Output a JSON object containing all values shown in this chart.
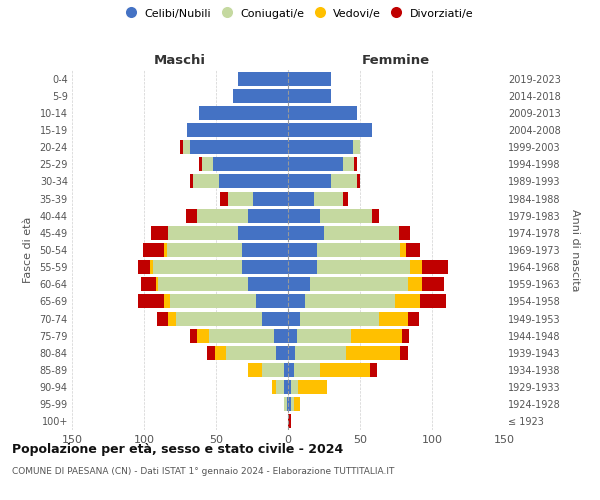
{
  "age_groups": [
    "100+",
    "95-99",
    "90-94",
    "85-89",
    "80-84",
    "75-79",
    "70-74",
    "65-69",
    "60-64",
    "55-59",
    "50-54",
    "45-49",
    "40-44",
    "35-39",
    "30-34",
    "25-29",
    "20-24",
    "15-19",
    "10-14",
    "5-9",
    "0-4"
  ],
  "birth_years": [
    "≤ 1923",
    "1924-1928",
    "1929-1933",
    "1934-1938",
    "1939-1943",
    "1944-1948",
    "1949-1953",
    "1954-1958",
    "1959-1963",
    "1964-1968",
    "1969-1973",
    "1974-1978",
    "1979-1983",
    "1984-1988",
    "1989-1993",
    "1994-1998",
    "1999-2003",
    "2004-2008",
    "2009-2013",
    "2014-2018",
    "2019-2023"
  ],
  "males": {
    "celibi": [
      0,
      1,
      3,
      3,
      8,
      10,
      18,
      22,
      28,
      32,
      32,
      35,
      28,
      24,
      48,
      52,
      68,
      70,
      62,
      38,
      35
    ],
    "coniugati": [
      0,
      2,
      5,
      15,
      35,
      45,
      60,
      60,
      62,
      62,
      52,
      48,
      35,
      18,
      18,
      8,
      5,
      0,
      0,
      0,
      0
    ],
    "vedovi": [
      0,
      0,
      3,
      10,
      8,
      8,
      5,
      4,
      2,
      2,
      2,
      0,
      0,
      0,
      0,
      0,
      0,
      0,
      0,
      0,
      0
    ],
    "divorziati": [
      0,
      0,
      0,
      0,
      5,
      5,
      8,
      18,
      10,
      8,
      15,
      12,
      8,
      5,
      2,
      2,
      2,
      0,
      0,
      0,
      0
    ]
  },
  "females": {
    "nubili": [
      0,
      2,
      2,
      4,
      5,
      6,
      8,
      12,
      15,
      20,
      20,
      25,
      22,
      18,
      30,
      38,
      45,
      58,
      48,
      30,
      30
    ],
    "coniugate": [
      0,
      2,
      5,
      18,
      35,
      38,
      55,
      62,
      68,
      65,
      58,
      52,
      36,
      20,
      18,
      8,
      5,
      0,
      0,
      0,
      0
    ],
    "vedove": [
      0,
      4,
      20,
      35,
      38,
      35,
      20,
      18,
      10,
      8,
      4,
      0,
      0,
      0,
      0,
      0,
      0,
      0,
      0,
      0,
      0
    ],
    "divorziate": [
      2,
      0,
      0,
      5,
      5,
      5,
      8,
      18,
      15,
      18,
      10,
      8,
      5,
      4,
      2,
      2,
      0,
      0,
      0,
      0,
      0
    ]
  },
  "colors": {
    "celibi": "#4472c4",
    "coniugati": "#c5d9a0",
    "vedovi": "#ffc000",
    "divorziati": "#c00000"
  },
  "legend_labels": [
    "Celibi/Nubili",
    "Coniugati/e",
    "Vedovi/e",
    "Divorziati/e"
  ],
  "title": "Popolazione per età, sesso e stato civile - 2024",
  "subtitle": "COMUNE DI PAESANA (CN) - Dati ISTAT 1° gennaio 2024 - Elaborazione TUTTITALIA.IT",
  "maschi_label": "Maschi",
  "femmine_label": "Femmine",
  "ylabel_left": "Fasce di età",
  "ylabel_right": "Anni di nascita",
  "xlim": 150,
  "background_color": "#ffffff",
  "grid_color": "#cccccc"
}
